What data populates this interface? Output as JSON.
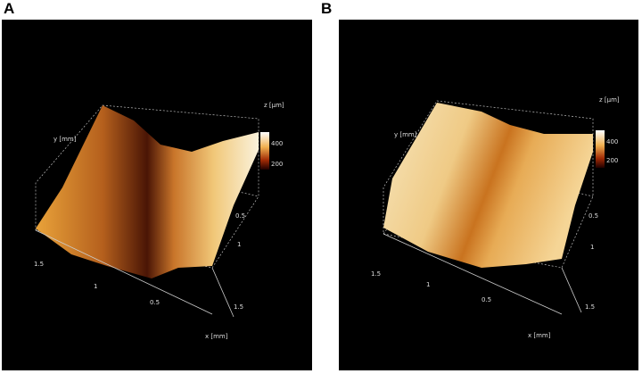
{
  "panels": [
    {
      "label": "A",
      "z_axis": {
        "label": "z [µm]",
        "ticks": [
          400,
          200
        ]
      },
      "y_axis": {
        "label": "y [mm]",
        "ticks": [
          0.5,
          1,
          1.5
        ]
      },
      "x_axis": {
        "label": "x [mm]",
        "ticks": [
          1.5,
          1,
          0.5
        ]
      }
    },
    {
      "label": "B",
      "z_axis": {
        "label": "z [µm]",
        "ticks": [
          400,
          200
        ]
      },
      "y_axis": {
        "label": "y [mm]",
        "ticks": [
          0.5,
          1,
          1.5
        ]
      },
      "x_axis": {
        "label": "x [mm]",
        "ticks": [
          1.5,
          1,
          0.5
        ]
      }
    }
  ]
}
